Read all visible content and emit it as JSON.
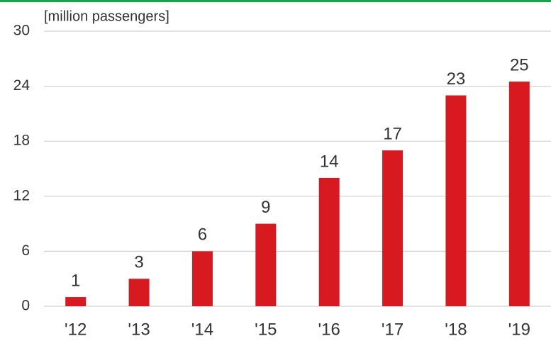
{
  "chart_data": {
    "type": "bar",
    "subtitle": "[million passengers]",
    "categories": [
      "'12",
      "'13",
      "'14",
      "'15",
      "'16",
      "'17",
      "'18",
      "'19"
    ],
    "values": [
      1,
      3,
      6,
      9,
      14,
      17,
      23,
      24.5
    ],
    "value_labels": [
      "1",
      "3",
      "6",
      "9",
      "14",
      "17",
      "23",
      "25"
    ],
    "color": "#d71920",
    "ylim": [
      0,
      30
    ],
    "yticks": [
      0,
      6,
      12,
      18,
      24,
      30
    ],
    "grid": true
  }
}
